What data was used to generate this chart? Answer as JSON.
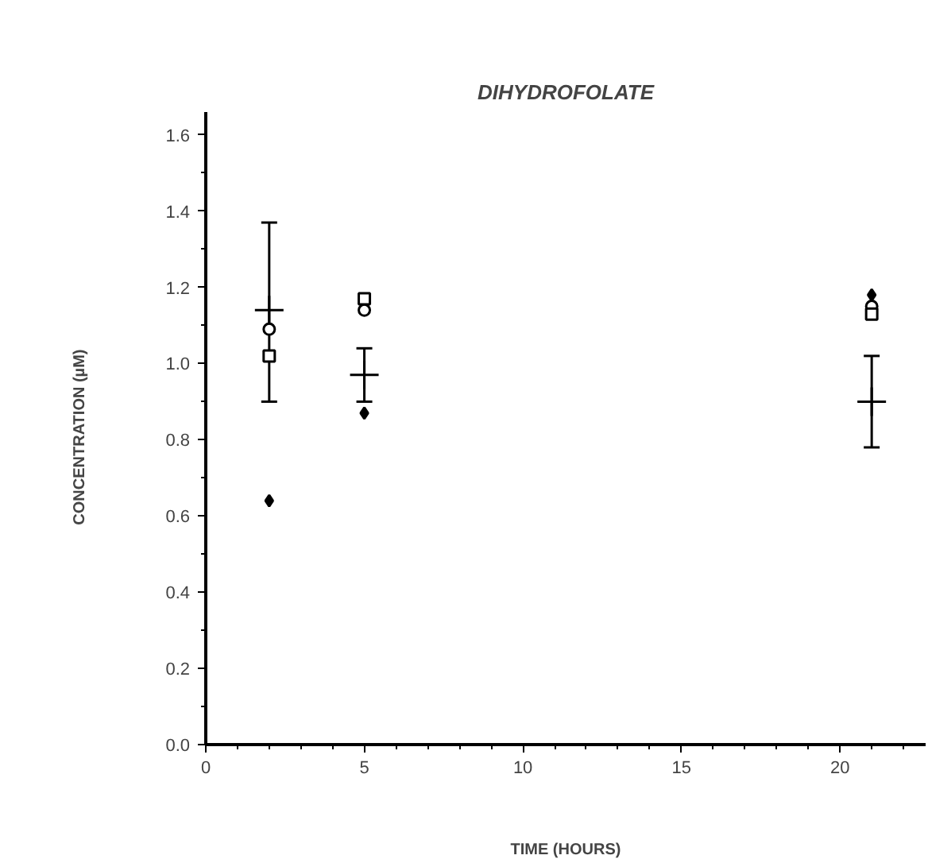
{
  "chart_data": {
    "type": "scatter",
    "title": "DIHYDROFOLATE",
    "xlabel": "TIME (HOURS)",
    "ylabel": "CONCENTRATION     (µM)",
    "x": [
      2,
      5,
      21
    ],
    "series": [
      {
        "color": "#000000",
        "marker": "circle",
        "values": [
          1.09,
          1.14,
          1.15
        ]
      },
      {
        "color": "#000000",
        "marker": "square",
        "values": [
          1.02,
          1.17,
          1.13
        ]
      },
      {
        "color": "#000000",
        "marker": "diamond",
        "values": [
          0.64,
          0.87,
          1.18
        ]
      },
      {
        "color": "#000000",
        "marker": "cross",
        "values": [
          1.14,
          0.97,
          0.9
        ],
        "errors": [
          [
            0.9,
            1.37
          ],
          [
            0.9,
            1.04
          ],
          [
            0.78,
            1.02
          ]
        ]
      }
    ],
    "xlim": [
      0,
      22.7
    ],
    "ylim": [
      0,
      1.66
    ],
    "xticks": [
      0,
      5,
      10,
      15,
      20
    ],
    "yticks": [
      {
        "value": 0,
        "label": "0.0"
      },
      0.2,
      0.4,
      0.6,
      0.8,
      {
        "value": 1,
        "label": "1.0"
      },
      1.2,
      1.4,
      1.6
    ],
    "grid": false
  }
}
